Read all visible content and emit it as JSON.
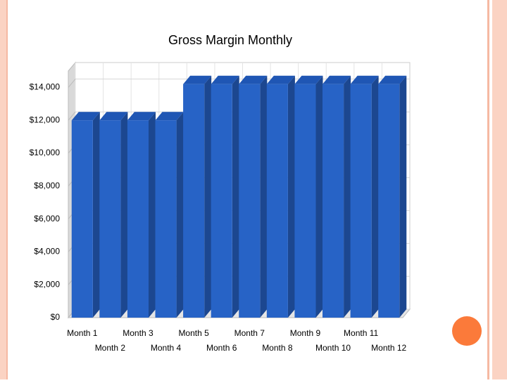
{
  "chart_data": {
    "type": "bar3d",
    "title": "Gross Margin Monthly",
    "categories": [
      "Month 1",
      "Month 2",
      "Month 3",
      "Month 4",
      "Month 5",
      "Month 6",
      "Month 7",
      "Month 8",
      "Month 9",
      "Month 10",
      "Month 11",
      "Month 12"
    ],
    "values": [
      12000,
      12000,
      12000,
      12000,
      14200,
      14200,
      14200,
      14200,
      14200,
      14200,
      14200,
      14200
    ],
    "color": "#2763c6",
    "ylim": [
      0,
      15000
    ],
    "yticks": [
      {
        "value": 0,
        "label": "$0"
      },
      {
        "value": 2000,
        "label": "$2,000"
      },
      {
        "value": 4000,
        "label": "$4,000"
      },
      {
        "value": 6000,
        "label": "$6,000"
      },
      {
        "value": 8000,
        "label": "$8,000"
      },
      {
        "value": 10000,
        "label": "$10,000"
      },
      {
        "value": 12000,
        "label": "$12,000"
      },
      {
        "value": 14000,
        "label": "$14,000"
      }
    ],
    "grid": true
  }
}
